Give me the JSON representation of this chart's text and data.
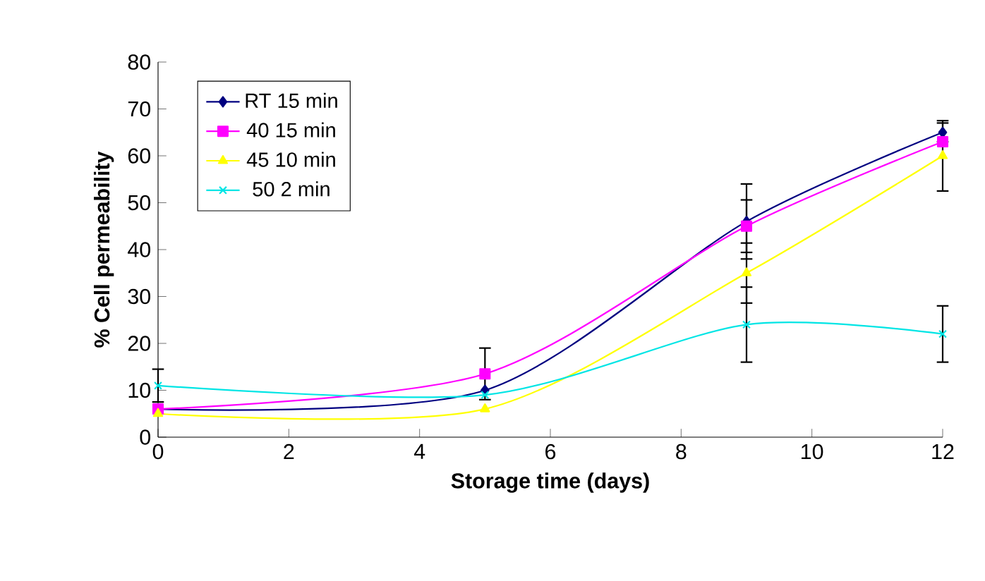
{
  "chart_data": {
    "type": "line",
    "xlabel": "Storage time (days)",
    "ylabel": "% Cell permeability",
    "x": [
      0,
      5,
      9,
      12
    ],
    "series": [
      {
        "name": "RT 15 min",
        "color": "#000080",
        "marker": "diamond",
        "values": [
          6,
          10,
          46,
          65
        ],
        "errors": [
          null,
          null,
          8,
          2
        ]
      },
      {
        "name": "40 15 min",
        "color": "#ff00ff",
        "marker": "square",
        "values": [
          6,
          13.5,
          45,
          63
        ],
        "errors": [
          null,
          5.5,
          5.6,
          null
        ]
      },
      {
        "name": "45 10 min",
        "color": "#ffff00",
        "marker": "triangle",
        "values": [
          5,
          6,
          35,
          60
        ],
        "errors": [
          null,
          null,
          6.4,
          7.5
        ]
      },
      {
        "name": "50 2 min",
        "color": "#00e5e5",
        "marker": "cross",
        "values": [
          11,
          9,
          24,
          22
        ],
        "errors": [
          3.5,
          null,
          8,
          6
        ]
      }
    ],
    "xlim": [
      0,
      12
    ],
    "xticks": [
      0,
      2,
      4,
      6,
      8,
      10,
      12
    ],
    "ylim": [
      0,
      80
    ],
    "yticks": [
      0,
      10,
      20,
      30,
      40,
      50,
      60,
      70,
      80
    ],
    "legend": "top left",
    "line_style": "solid"
  }
}
